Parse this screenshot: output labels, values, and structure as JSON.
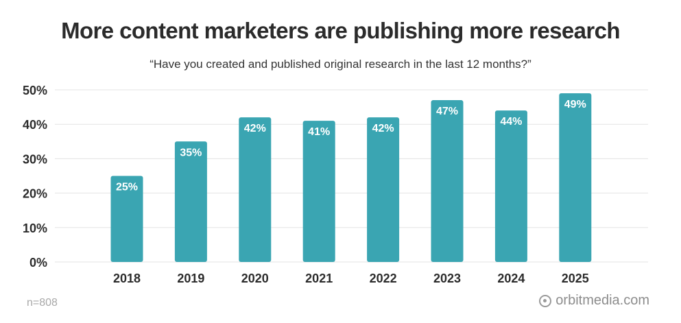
{
  "title": "More content marketers are publishing more research",
  "subtitle": "“Have you created and published original research in the last 12 months?”",
  "footer": {
    "sample_note": "n=808",
    "brand": "orbitmedia.com",
    "brand_icon": "orbit-logo-icon"
  },
  "colors": {
    "bar": "#3aa5b2",
    "grid": "#e3e3e3",
    "tick_text": "#2b2b2b",
    "data_label": "#ffffff"
  },
  "chart_data": {
    "type": "bar",
    "categories": [
      "2018",
      "2019",
      "2020",
      "2021",
      "2022",
      "2023",
      "2024",
      "2025"
    ],
    "values": [
      25,
      35,
      42,
      41,
      42,
      47,
      44,
      49
    ],
    "data_labels": [
      "25%",
      "35%",
      "42%",
      "41%",
      "42%",
      "47%",
      "44%",
      "49%"
    ],
    "yticks": [
      0,
      10,
      20,
      30,
      40,
      50
    ],
    "ytick_labels": [
      "0%",
      "10%",
      "20%",
      "30%",
      "40%",
      "50%"
    ],
    "ylim": [
      0,
      50
    ],
    "grid": true,
    "legend": "none"
  }
}
